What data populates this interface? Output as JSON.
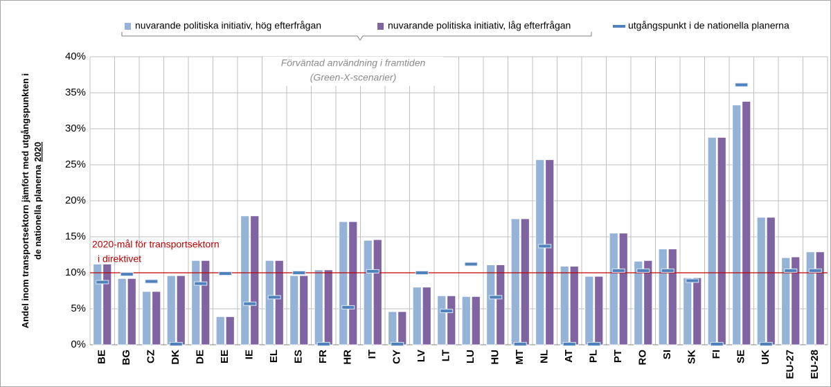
{
  "chart_data": {
    "type": "bar",
    "ylabel": [
      "Andel inom transportsektorn jämfört med utgångspunkten i",
      "de nationella planerna",
      "2020"
    ],
    "annotation": [
      "Förväntad användning i framtiden",
      "(Green-X-scenarier)"
    ],
    "target": 10,
    "target_label": [
      "2020-mål för transportsektorn",
      "i direktivet"
    ],
    "target_color": "#c00000",
    "categories": [
      "BE",
      "BG",
      "CZ",
      "DK",
      "DE",
      "EE",
      "IE",
      "EL",
      "ES",
      "FR",
      "HR",
      "IT",
      "CY",
      "LV",
      "LT",
      "LU",
      "HU",
      "MT",
      "NL",
      "AT",
      "PL",
      "PT",
      "RO",
      "SI",
      "SK",
      "FI",
      "SE",
      "UK",
      "EU-27",
      "EU-28"
    ],
    "series": [
      {
        "name": "nuvarande politiska initiativ, hög efterfrågan",
        "color": "#95b3d7",
        "values": [
          11.2,
          9.2,
          7.4,
          9.6,
          11.7,
          3.9,
          17.9,
          11.7,
          9.6,
          10.4,
          17.1,
          14.5,
          4.6,
          8.0,
          6.8,
          6.7,
          11.1,
          17.5,
          25.7,
          10.9,
          9.5,
          15.5,
          11.6,
          13.3,
          9.3,
          28.8,
          33.3,
          17.7,
          12.1,
          12.9
        ]
      },
      {
        "name": "nuvarande politiska initiativ, låg efterfrågan",
        "color": "#8064a2",
        "values": [
          11.2,
          9.2,
          7.4,
          9.6,
          11.7,
          3.9,
          17.9,
          11.7,
          9.6,
          10.4,
          17.1,
          14.6,
          4.6,
          8.0,
          6.8,
          6.7,
          11.1,
          17.5,
          25.7,
          10.9,
          9.5,
          15.5,
          11.7,
          13.3,
          9.3,
          28.8,
          33.8,
          17.7,
          12.2,
          12.9
        ]
      },
      {
        "name": "utgångspunkt i de nationella planerna",
        "color": "#4f81bd",
        "marker": "dash",
        "values": [
          8.7,
          9.8,
          8.8,
          0.1,
          8.5,
          9.9,
          5.7,
          6.6,
          10.0,
          0.1,
          5.2,
          10.2,
          0.1,
          10.0,
          4.7,
          11.2,
          6.6,
          0.1,
          13.7,
          0.1,
          0.1,
          10.3,
          10.3,
          10.3,
          8.9,
          0.1,
          36.1,
          0.1,
          10.3,
          10.3
        ]
      }
    ],
    "ylim": [
      0,
      40
    ],
    "yticks": [
      {
        "value": 0,
        "label": "0%"
      },
      {
        "value": 5,
        "label": "5%"
      },
      {
        "value": 10,
        "label": "10%"
      },
      {
        "value": 15,
        "label": "15%"
      },
      {
        "value": 20,
        "label": "20%"
      },
      {
        "value": 25,
        "label": "25%"
      },
      {
        "value": 30,
        "label": "30%"
      },
      {
        "value": 35,
        "label": "35%"
      },
      {
        "value": 40,
        "label": "40%"
      }
    ],
    "grid": true
  }
}
